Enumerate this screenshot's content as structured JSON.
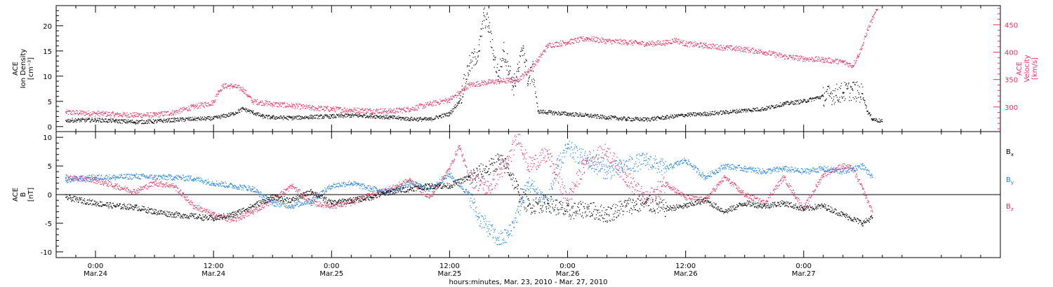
{
  "chart_data": [
    {
      "type": "scatter",
      "panel": "top",
      "ylabel_left": [
        "ACE",
        "Ion Density",
        "[cm⁻³]"
      ],
      "ylabel_right": [
        "ACE",
        "Velocity",
        "[km/s]"
      ],
      "yticks_left": [
        "0",
        "5",
        "10",
        "15",
        "20"
      ],
      "ylim_left": [
        -1,
        24
      ],
      "yticks_right": [
        "300",
        "350",
        "400",
        "450"
      ],
      "ylim_right": [
        255,
        485
      ],
      "colors": {
        "density": "#000000",
        "velocity": "#e8305f"
      },
      "series": [
        {
          "key": "density",
          "axis": "left",
          "points": [
            [
              -3,
              1.2
            ],
            [
              0,
              1.3
            ],
            [
              2,
              1.1
            ],
            [
              4,
              0.9
            ],
            [
              6,
              1.0
            ],
            [
              8,
              1.3
            ],
            [
              10,
              1.5
            ],
            [
              12,
              1.6
            ],
            [
              14,
              2.5
            ],
            [
              15,
              3.5
            ],
            [
              16,
              2.8
            ],
            [
              17,
              2.0
            ],
            [
              18,
              1.8
            ],
            [
              20,
              1.7
            ],
            [
              22,
              1.9
            ],
            [
              24,
              2.0
            ],
            [
              26,
              2.2
            ],
            [
              28,
              2.1
            ],
            [
              30,
              1.8
            ],
            [
              32,
              1.5
            ],
            [
              34,
              1.4
            ],
            [
              35,
              2.0
            ],
            [
              36,
              2.5
            ],
            [
              37,
              5
            ],
            [
              38,
              12
            ],
            [
              39,
              15
            ],
            [
              39.5,
              22
            ],
            [
              40,
              20
            ],
            [
              40.5,
              14
            ],
            [
              41,
              10
            ],
            [
              41.5,
              15
            ],
            [
              42,
              12
            ],
            [
              42.5,
              8
            ],
            [
              43,
              11
            ],
            [
              43.5,
              16
            ],
            [
              44,
              9
            ],
            [
              44.5,
              11
            ],
            [
              45,
              3.0
            ],
            [
              46,
              2.8
            ],
            [
              48,
              2.5
            ],
            [
              50,
              2.2
            ],
            [
              52,
              1.8
            ],
            [
              54,
              1.5
            ],
            [
              56,
              1.4
            ],
            [
              58,
              1.8
            ],
            [
              60,
              2.3
            ],
            [
              62,
              2.5
            ],
            [
              64,
              2.8
            ],
            [
              66,
              3.2
            ],
            [
              68,
              3.5
            ],
            [
              70,
              4.5
            ],
            [
              72,
              5.0
            ],
            [
              74,
              6.0
            ],
            [
              76,
              6.8
            ],
            [
              77,
              7.2
            ],
            [
              78,
              6.5
            ],
            [
              78.5,
              3
            ],
            [
              79,
              1.5
            ],
            [
              80,
              1.0
            ]
          ]
        },
        {
          "key": "velocity",
          "axis": "right",
          "points": [
            [
              -3,
              290
            ],
            [
              0,
              288
            ],
            [
              2,
              286
            ],
            [
              4,
              285
            ],
            [
              6,
              285
            ],
            [
              8,
              290
            ],
            [
              10,
              300
            ],
            [
              12,
              308
            ],
            [
              12.5,
              328
            ],
            [
              13,
              338
            ],
            [
              14,
              338
            ],
            [
              15,
              332
            ],
            [
              16,
              310
            ],
            [
              18,
              305
            ],
            [
              20,
              302
            ],
            [
              22,
              298
            ],
            [
              24,
              296
            ],
            [
              26,
              294
            ],
            [
              28,
              293
            ],
            [
              30,
              292
            ],
            [
              32,
              296
            ],
            [
              34,
              305
            ],
            [
              36,
              313
            ],
            [
              37,
              325
            ],
            [
              38,
              340
            ],
            [
              40,
              345
            ],
            [
              42,
              348
            ],
            [
              43,
              350
            ],
            [
              44,
              365
            ],
            [
              45,
              385
            ],
            [
              46,
              412
            ],
            [
              48,
              418
            ],
            [
              50,
              425
            ],
            [
              52,
              420
            ],
            [
              54,
              418
            ],
            [
              56,
              415
            ],
            [
              58,
              417
            ],
            [
              59,
              422
            ],
            [
              60,
              415
            ],
            [
              62,
              412
            ],
            [
              64,
              408
            ],
            [
              66,
              405
            ],
            [
              68,
              400
            ],
            [
              70,
              392
            ],
            [
              72,
              388
            ],
            [
              74,
              386
            ],
            [
              76,
              382
            ],
            [
              77,
              375
            ],
            [
              77.5,
              392
            ],
            [
              78,
              412
            ],
            [
              78.5,
              440
            ],
            [
              79,
              460
            ],
            [
              79.5,
              478
            ]
          ]
        }
      ]
    },
    {
      "type": "scatter",
      "panel": "bottom",
      "ylabel": [
        "ACE",
        "B",
        "[nT]"
      ],
      "yticks": [
        "-10",
        "-5",
        "0",
        "5",
        "10"
      ],
      "ylim": [
        -11,
        11
      ],
      "legend": [
        {
          "label": "B",
          "subscript": "x",
          "color": "#000000"
        },
        {
          "label": "B",
          "subscript": "y",
          "color": "#1a7fe0"
        },
        {
          "label": "B",
          "subscript": "z",
          "color": "#e8305f"
        }
      ],
      "series": [
        {
          "key": "Bx",
          "points": [
            [
              -3,
              -0.5
            ],
            [
              0,
              -1.5
            ],
            [
              2,
              -2.0
            ],
            [
              4,
              -2.2
            ],
            [
              6,
              -3.0
            ],
            [
              8,
              -3.5
            ],
            [
              10,
              -3.8
            ],
            [
              12,
              -4.2
            ],
            [
              14,
              -3.5
            ],
            [
              16,
              -2.0
            ],
            [
              18,
              -0.5
            ],
            [
              20,
              -1.0
            ],
            [
              22,
              0.5
            ],
            [
              24,
              -1.5
            ],
            [
              26,
              -1.0
            ],
            [
              28,
              -0.5
            ],
            [
              30,
              0.5
            ],
            [
              32,
              1.0
            ],
            [
              34,
              1.5
            ],
            [
              36,
              1.5
            ],
            [
              38,
              3.0
            ],
            [
              40,
              4.5
            ],
            [
              41,
              6.0
            ],
            [
              42,
              4.5
            ],
            [
              43,
              0.5
            ],
            [
              44,
              -2.0
            ],
            [
              46,
              -1.5
            ],
            [
              48,
              -3.0
            ],
            [
              50,
              -2.5
            ],
            [
              52,
              -3.5
            ],
            [
              54,
              -2.0
            ],
            [
              56,
              -1.5
            ],
            [
              58,
              -2.5
            ],
            [
              60,
              -2.0
            ],
            [
              62,
              -1.0
            ],
            [
              64,
              -3.0
            ],
            [
              66,
              -1.5
            ],
            [
              68,
              -2.0
            ],
            [
              70,
              -1.5
            ],
            [
              72,
              -2.5
            ],
            [
              74,
              -2.0
            ],
            [
              76,
              -3.5
            ],
            [
              78,
              -5.0
            ],
            [
              79,
              -4.0
            ]
          ]
        },
        {
          "key": "By",
          "points": [
            [
              -3,
              2.5
            ],
            [
              0,
              3.0
            ],
            [
              2,
              3.0
            ],
            [
              4,
              3.2
            ],
            [
              6,
              3.0
            ],
            [
              8,
              3.0
            ],
            [
              10,
              2.8
            ],
            [
              12,
              2.0
            ],
            [
              14,
              1.5
            ],
            [
              16,
              1.0
            ],
            [
              18,
              -1.5
            ],
            [
              20,
              -2.0
            ],
            [
              22,
              -1.0
            ],
            [
              24,
              1.5
            ],
            [
              26,
              2.0
            ],
            [
              28,
              1.0
            ],
            [
              30,
              0.5
            ],
            [
              32,
              2.0
            ],
            [
              34,
              1.0
            ],
            [
              36,
              3.5
            ],
            [
              38,
              0
            ],
            [
              39,
              -4.0
            ],
            [
              40,
              -6.0
            ],
            [
              41,
              -8.0
            ],
            [
              42,
              -7.0
            ],
            [
              43,
              -3.0
            ],
            [
              44,
              2.0
            ],
            [
              46,
              -1.5
            ],
            [
              47,
              5.0
            ],
            [
              48,
              8.0
            ],
            [
              50,
              6.0
            ],
            [
              52,
              4.0
            ],
            [
              54,
              5.0
            ],
            [
              56,
              6.0
            ],
            [
              58,
              4.5
            ],
            [
              60,
              6.0
            ],
            [
              62,
              3.0
            ],
            [
              64,
              5.0
            ],
            [
              66,
              4.5
            ],
            [
              68,
              4.0
            ],
            [
              70,
              4.5
            ],
            [
              72,
              4.0
            ],
            [
              74,
              4.5
            ],
            [
              76,
              4.0
            ],
            [
              78,
              5.0
            ],
            [
              79,
              3.0
            ]
          ]
        },
        {
          "key": "Bz",
          "points": [
            [
              -3,
              3.0
            ],
            [
              0,
              2.5
            ],
            [
              2,
              1.5
            ],
            [
              4,
              0.5
            ],
            [
              6,
              2.0
            ],
            [
              8,
              1.5
            ],
            [
              10,
              -2.0
            ],
            [
              12,
              -3.5
            ],
            [
              14,
              -4.5
            ],
            [
              16,
              -3.0
            ],
            [
              18,
              -1.0
            ],
            [
              20,
              1.5
            ],
            [
              22,
              -1.5
            ],
            [
              24,
              -2.0
            ],
            [
              26,
              -1.5
            ],
            [
              28,
              0
            ],
            [
              30,
              1.0
            ],
            [
              32,
              2.5
            ],
            [
              34,
              -0.5
            ],
            [
              36,
              4.5
            ],
            [
              37,
              8.5
            ],
            [
              38,
              3.0
            ],
            [
              40,
              1.0
            ],
            [
              42,
              6.0
            ],
            [
              43,
              10.5
            ],
            [
              44,
              5.0
            ],
            [
              46,
              7.0
            ],
            [
              48,
              -1.0
            ],
            [
              50,
              6.0
            ],
            [
              52,
              7.5
            ],
            [
              54,
              3.0
            ],
            [
              56,
              -1.0
            ],
            [
              58,
              2.0
            ],
            [
              60,
              -0.5
            ],
            [
              62,
              -1.0
            ],
            [
              64,
              3.0
            ],
            [
              66,
              0
            ],
            [
              68,
              -1.5
            ],
            [
              70,
              3.0
            ],
            [
              72,
              -2.5
            ],
            [
              74,
              3.5
            ],
            [
              76,
              5.0
            ],
            [
              77,
              4.5
            ],
            [
              78,
              1.0
            ],
            [
              79,
              -3.0
            ]
          ]
        }
      ]
    },
    {
      "type": "time-axis",
      "xlim": [
        -4,
        92
      ],
      "xticks": [
        {
          "hour": 0,
          "time": "0:00",
          "date": "Mar.24"
        },
        {
          "hour": 12,
          "time": "12:00",
          "date": "Mar.24"
        },
        {
          "hour": 24,
          "time": "0:00",
          "date": "Mar.25"
        },
        {
          "hour": 36,
          "time": "12:00",
          "date": "Mar.25"
        },
        {
          "hour": 48,
          "time": "0:00",
          "date": "Mar.26"
        },
        {
          "hour": 60,
          "time": "12:00",
          "date": "Mar.26"
        },
        {
          "hour": 72,
          "time": "0:00",
          "date": "Mar.27"
        }
      ],
      "xlabel": "hours:minutes, Mar. 23, 2010 - Mar. 27, 2010"
    }
  ]
}
